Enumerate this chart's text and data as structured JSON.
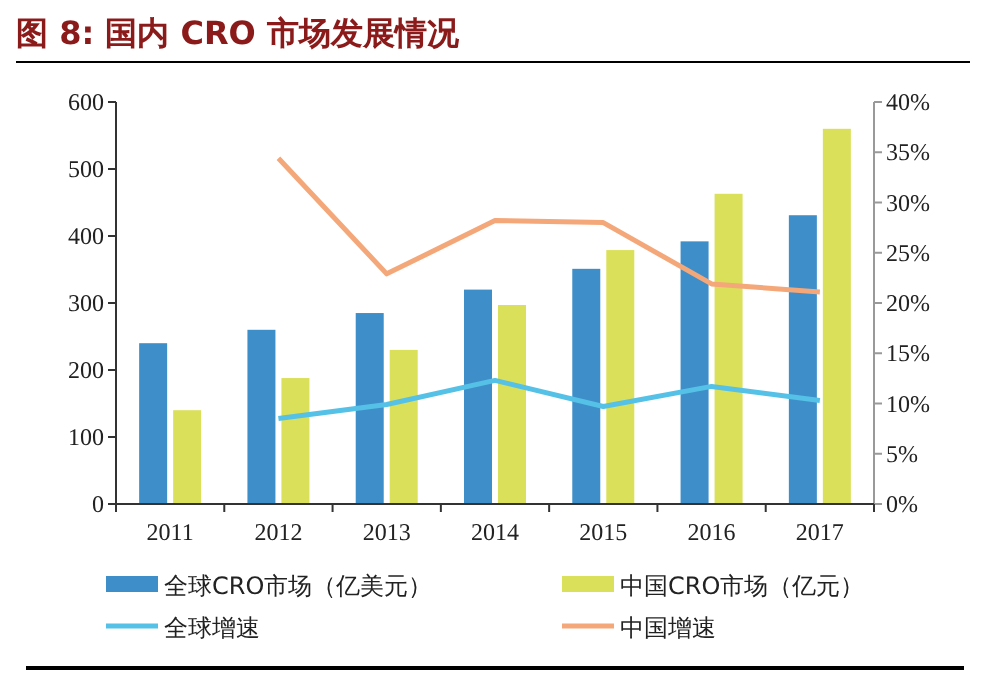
{
  "chart_data": {
    "type": "bar",
    "title": "图 8: 国内 CRO 市场发展情况",
    "categories": [
      "2011",
      "2012",
      "2013",
      "2014",
      "2015",
      "2016",
      "2017"
    ],
    "series": [
      {
        "name": "全球CRO市场（亿美元）",
        "color": "#3d8ec9",
        "values": [
          240,
          260,
          285,
          320,
          351,
          392,
          431
        ]
      },
      {
        "name": "中国CRO市场（亿元）",
        "color": "#dbe05a",
        "values": [
          140,
          188,
          230,
          297,
          379,
          463,
          560
        ]
      },
      {
        "name": "全球增速",
        "type": "line",
        "axis": "y2",
        "color": "#55c1e6",
        "values": [
          null,
          8.5,
          9.9,
          12.3,
          9.7,
          11.7,
          10.3
        ]
      },
      {
        "name": "中国增速",
        "type": "line",
        "axis": "y2",
        "color": "#f4a779",
        "values": [
          null,
          34.4,
          22.9,
          28.2,
          28.0,
          21.9,
          21.1
        ]
      }
    ],
    "ylim": [
      0,
      600
    ],
    "yticks": [
      0,
      100,
      200,
      300,
      400,
      500,
      600
    ],
    "y2lim": [
      0,
      40
    ],
    "y2ticks": [
      {
        "value": 0,
        "label": "0%"
      },
      {
        "value": 5,
        "label": "5%"
      },
      {
        "value": 10,
        "label": "10%"
      },
      {
        "value": 15,
        "label": "15%"
      },
      {
        "value": 20,
        "label": "20%"
      },
      {
        "value": 25,
        "label": "25%"
      },
      {
        "value": 30,
        "label": "30%"
      },
      {
        "value": 35,
        "label": "35%"
      },
      {
        "value": 40,
        "label": "40%"
      }
    ],
    "legend": "bottom",
    "marker": "none",
    "line_style": "solid"
  }
}
